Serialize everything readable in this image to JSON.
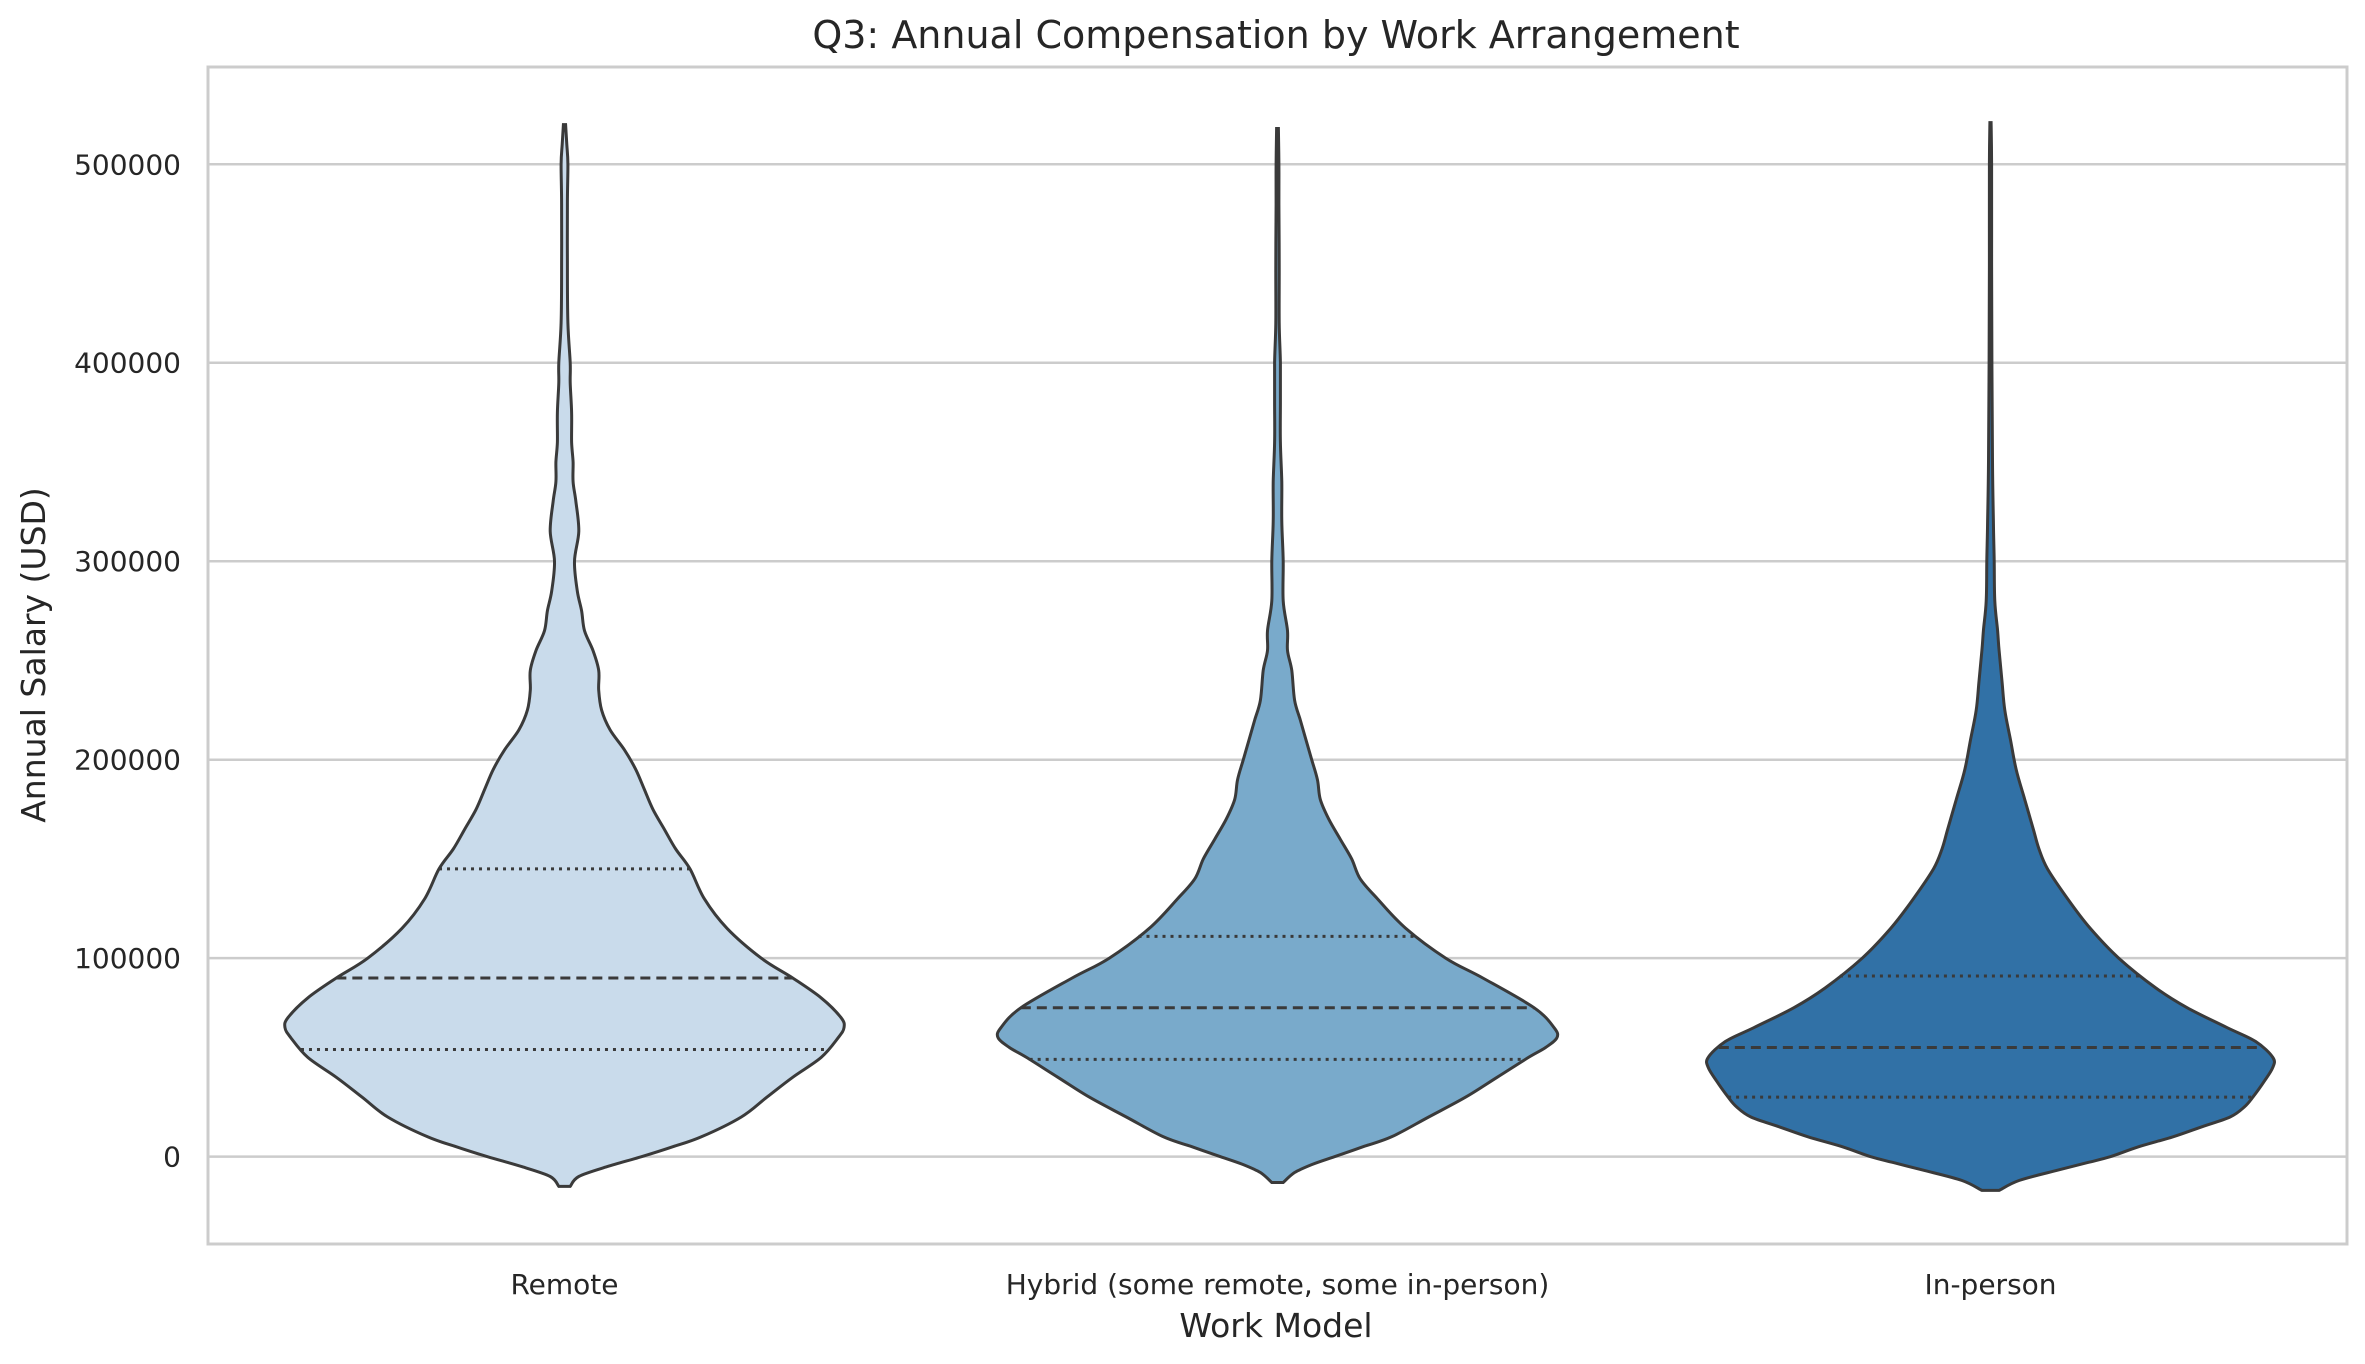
{
  "chart_data": {
    "type": "violin",
    "title": "Q3: Annual Compensation by Work Arrangement",
    "xlabel": "Work Model",
    "ylabel": "Annual Salary (USD)",
    "ylim": [
      -44000,
      549000
    ],
    "yticks": [
      0,
      100000,
      200000,
      300000,
      400000,
      500000
    ],
    "grid": "horizontal",
    "inner": "quartile",
    "categories": [
      "Remote",
      "Hybrid (some remote, some in-person)",
      "In-person"
    ],
    "series": [
      {
        "category": "Remote",
        "color": "#c9dbeb",
        "min": -15000,
        "max": 520000,
        "q1": 54000,
        "median": 90000,
        "q3": 145000,
        "density": [
          [
            -15000,
            0.02
          ],
          [
            -10000,
            0.05
          ],
          [
            -5000,
            0.15
          ],
          [
            0,
            0.27
          ],
          [
            5000,
            0.38
          ],
          [
            10000,
            0.48
          ],
          [
            20000,
            0.62
          ],
          [
            30000,
            0.71
          ],
          [
            40000,
            0.8
          ],
          [
            50000,
            0.9
          ],
          [
            60000,
            0.96
          ],
          [
            65000,
            0.98
          ],
          [
            70000,
            0.97
          ],
          [
            80000,
            0.9
          ],
          [
            90000,
            0.8
          ],
          [
            100000,
            0.69
          ],
          [
            115000,
            0.57
          ],
          [
            130000,
            0.49
          ],
          [
            145000,
            0.44
          ],
          [
            155000,
            0.39
          ],
          [
            165000,
            0.35
          ],
          [
            175000,
            0.31
          ],
          [
            185000,
            0.28
          ],
          [
            195000,
            0.25
          ],
          [
            205000,
            0.21
          ],
          [
            215000,
            0.16
          ],
          [
            225000,
            0.13
          ],
          [
            235000,
            0.12
          ],
          [
            245000,
            0.12
          ],
          [
            255000,
            0.1
          ],
          [
            265000,
            0.07
          ],
          [
            275000,
            0.06
          ],
          [
            285000,
            0.045
          ],
          [
            300000,
            0.035
          ],
          [
            315000,
            0.05
          ],
          [
            330000,
            0.04
          ],
          [
            340000,
            0.03
          ],
          [
            350000,
            0.03
          ],
          [
            360000,
            0.025
          ],
          [
            375000,
            0.025
          ],
          [
            390000,
            0.02
          ],
          [
            400000,
            0.02
          ],
          [
            420000,
            0.012
          ],
          [
            450000,
            0.01
          ],
          [
            480000,
            0.01
          ],
          [
            500000,
            0.012
          ],
          [
            510000,
            0.008
          ],
          [
            520000,
            0.004
          ]
        ]
      },
      {
        "category": "Hybrid (some remote, some in-person)",
        "color": "#79aacb",
        "min": -13000,
        "max": 518000,
        "q1": 49000,
        "median": 75000,
        "q3": 111000,
        "density": [
          [
            -13000,
            0.02
          ],
          [
            -8000,
            0.06
          ],
          [
            -4000,
            0.12
          ],
          [
            0,
            0.2
          ],
          [
            5000,
            0.3
          ],
          [
            10000,
            0.4
          ],
          [
            20000,
            0.53
          ],
          [
            30000,
            0.66
          ],
          [
            40000,
            0.77
          ],
          [
            50000,
            0.88
          ],
          [
            55000,
            0.94
          ],
          [
            60000,
            0.98
          ],
          [
            65000,
            0.97
          ],
          [
            75000,
            0.9
          ],
          [
            90000,
            0.72
          ],
          [
            100000,
            0.59
          ],
          [
            115000,
            0.45
          ],
          [
            130000,
            0.35
          ],
          [
            140000,
            0.29
          ],
          [
            150000,
            0.26
          ],
          [
            160000,
            0.22
          ],
          [
            170000,
            0.18
          ],
          [
            180000,
            0.15
          ],
          [
            190000,
            0.14
          ],
          [
            200000,
            0.12
          ],
          [
            210000,
            0.1
          ],
          [
            220000,
            0.08
          ],
          [
            230000,
            0.06
          ],
          [
            245000,
            0.05
          ],
          [
            255000,
            0.035
          ],
          [
            265000,
            0.035
          ],
          [
            280000,
            0.02
          ],
          [
            300000,
            0.02
          ],
          [
            320000,
            0.015
          ],
          [
            340000,
            0.015
          ],
          [
            360000,
            0.01
          ],
          [
            380000,
            0.01
          ],
          [
            400000,
            0.01
          ],
          [
            420000,
            0.006
          ],
          [
            450000,
            0.006
          ],
          [
            480000,
            0.005
          ],
          [
            500000,
            0.005
          ],
          [
            518000,
            0.003
          ]
        ]
      },
      {
        "category": "In-person",
        "color": "#3171a6",
        "min": -17000,
        "max": 521000,
        "q1": 30000,
        "median": 55000,
        "q3": 91000,
        "density": [
          [
            -17000,
            0.03
          ],
          [
            -12000,
            0.1
          ],
          [
            -7000,
            0.23
          ],
          [
            -3000,
            0.34
          ],
          [
            0,
            0.42
          ],
          [
            5000,
            0.52
          ],
          [
            10000,
            0.64
          ],
          [
            15000,
            0.74
          ],
          [
            20000,
            0.84
          ],
          [
            25000,
            0.89
          ],
          [
            30000,
            0.92
          ],
          [
            38000,
            0.96
          ],
          [
            45000,
            0.99
          ],
          [
            50000,
            0.99
          ],
          [
            58000,
            0.93
          ],
          [
            65000,
            0.83
          ],
          [
            75000,
            0.69
          ],
          [
            85000,
            0.58
          ],
          [
            100000,
            0.45
          ],
          [
            115000,
            0.35
          ],
          [
            130000,
            0.27
          ],
          [
            145000,
            0.2
          ],
          [
            155000,
            0.17
          ],
          [
            165000,
            0.15
          ],
          [
            180000,
            0.12
          ],
          [
            195000,
            0.09
          ],
          [
            210000,
            0.07
          ],
          [
            225000,
            0.05
          ],
          [
            240000,
            0.04
          ],
          [
            255000,
            0.03
          ],
          [
            265000,
            0.025
          ],
          [
            280000,
            0.015
          ],
          [
            300000,
            0.013
          ],
          [
            320000,
            0.01
          ],
          [
            350000,
            0.007
          ],
          [
            400000,
            0.005
          ],
          [
            450000,
            0.004
          ],
          [
            500000,
            0.004
          ],
          [
            521000,
            0.002
          ]
        ]
      }
    ]
  }
}
